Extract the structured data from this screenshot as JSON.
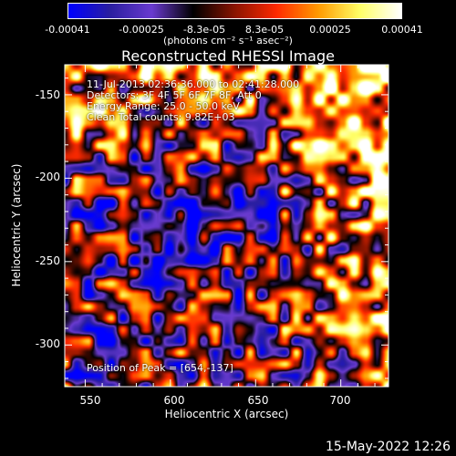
{
  "colorbar": {
    "ticks": [
      "-0.00041",
      "-0.00025",
      "-8.3e-05",
      "8.3e-05",
      "0.00025",
      "0.00041"
    ],
    "units": "(photons cm⁻² s⁻¹ asec⁻²)",
    "range": [
      -0.00041,
      0.00041
    ],
    "colors": [
      "#0000ff",
      "#2b1fa0",
      "#6a3bd0",
      "#000000",
      "#8b1500",
      "#ff2a00",
      "#ff9a00",
      "#ffff66",
      "#ffffff"
    ]
  },
  "annotations": {
    "time": "11-Jul-2013 02:36:36.000 to 02:41:28.000",
    "detectors": "Detectors: 3F 4F 5F 6F 7F 8F, Att 0",
    "energy": "Energy Range: 25.0 - 50.0 keV",
    "clean": "Clean     Total counts: 9.82E+03",
    "peak": "Position of Peak = [654,-137]"
  },
  "timestamp": "15-May-2022 12:26",
  "chart_data": {
    "type": "heatmap",
    "title": "Reconstructed RHESSI Image",
    "xlabel": "Heliocentric X (arcsec)",
    "ylabel": "Heliocentric Y (arcsec)",
    "xlim": [
      538,
      728
    ],
    "ylim": [
      -325,
      -132
    ],
    "xticks": [
      550,
      600,
      650,
      700
    ],
    "xtick_labels": [
      "550",
      "600",
      "650",
      "700"
    ],
    "yticks": [
      -150,
      -200,
      -250,
      -300
    ],
    "ytick_labels": [
      "-150",
      "-200",
      "-250",
      "-300"
    ],
    "peak": [
      654,
      -137
    ]
  }
}
